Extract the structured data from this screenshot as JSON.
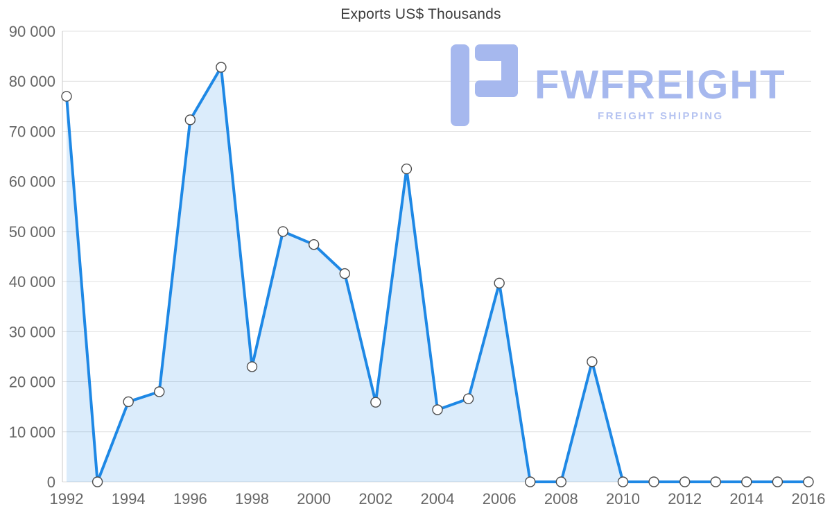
{
  "title": "Exports US$ Thousands",
  "logo": {
    "wordmark": "FWFREIGHT",
    "subtitle": "FREIGHT SHIPPING"
  },
  "colors": {
    "line": "#1e88e5",
    "area": "rgba(30,136,229,0.16)",
    "grid": "#e1e1e1",
    "axis_line": "#c9c9c9",
    "axis_text": "#666666",
    "title_text": "#3d3d3d",
    "marker_fill": "#ffffff",
    "marker_stroke": "#4d4d4d",
    "logo": "#a6b8ee",
    "logo_light": "#b5c3f1"
  },
  "chart_data": {
    "type": "area",
    "title": "Exports US$ Thousands",
    "xlabel": "",
    "ylabel": "",
    "x": [
      1992,
      1993,
      1994,
      1995,
      1996,
      1997,
      1998,
      1999,
      2000,
      2001,
      2002,
      2003,
      2004,
      2005,
      2006,
      2007,
      2008,
      2009,
      2010,
      2011,
      2012,
      2013,
      2014,
      2015,
      2016
    ],
    "values": [
      77000,
      0,
      16000,
      18000,
      72300,
      82800,
      23000,
      50000,
      47400,
      41600,
      15900,
      62500,
      14400,
      16600,
      39700,
      0,
      0,
      24000,
      0,
      0,
      0,
      0,
      0,
      0,
      0
    ],
    "ylim": [
      0,
      90000
    ],
    "y_tick_step": 10000,
    "y_tick_labels": [
      "0",
      "10 000",
      "20 000",
      "30 000",
      "40 000",
      "50 000",
      "60 000",
      "70 000",
      "80 000",
      "90 000"
    ],
    "x_tick_labels": [
      "1992",
      "1994",
      "1996",
      "1998",
      "2000",
      "2002",
      "2004",
      "2006",
      "2008",
      "2010",
      "2012",
      "2014",
      "2016"
    ],
    "grid": "horizontal",
    "legend": "none",
    "marker": "circle-white"
  }
}
